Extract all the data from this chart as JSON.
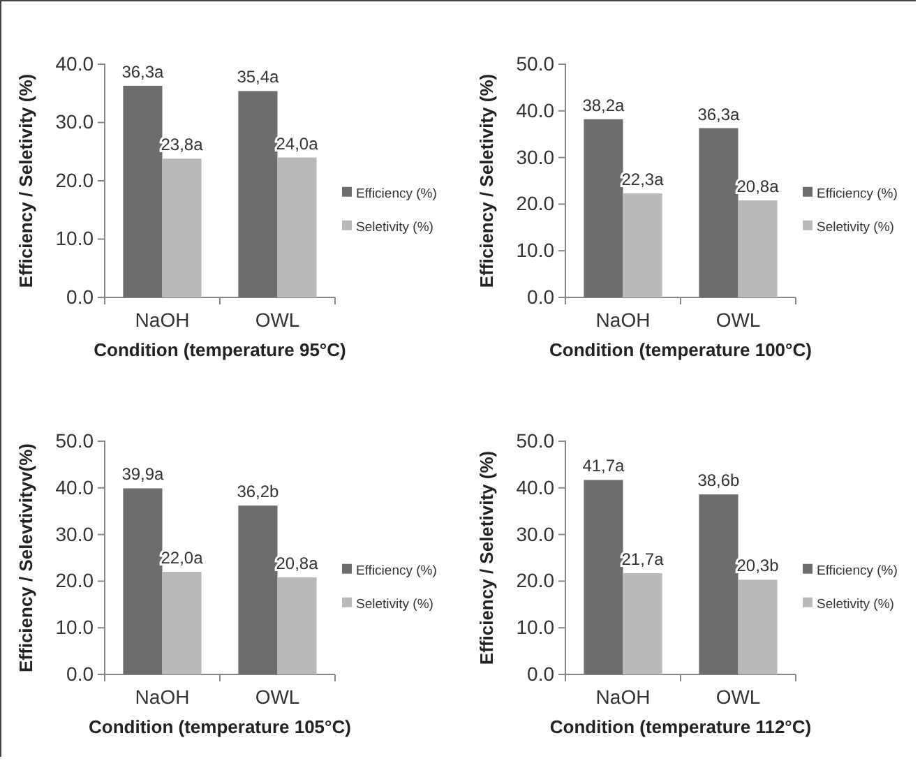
{
  "chart_data": [
    {
      "type": "bar",
      "xlabel": "Condition (temperature 95°C)",
      "ylabel": "Efficiency / Seletivity (%)",
      "categories": [
        "NaOH",
        "OWL"
      ],
      "ylim": [
        0,
        40
      ],
      "yticks": [
        {
          "value": 0,
          "label": "0.0"
        },
        {
          "value": 10,
          "label": "10.0"
        },
        {
          "value": 20,
          "label": "20.0"
        },
        {
          "value": 30,
          "label": "30.0"
        },
        {
          "value": 40,
          "label": "40.0"
        }
      ],
      "legend": "right",
      "series": [
        {
          "name": "Efficiency (%)",
          "color": "#6d6d6d",
          "values": [
            36.3,
            35.4
          ],
          "value_labels": [
            "36,3a",
            "35,4a"
          ]
        },
        {
          "name": "Seletivity (%)",
          "color": "#b9b9b9",
          "values": [
            23.8,
            24.0
          ],
          "value_labels": [
            "23,8a",
            "24,0a"
          ]
        }
      ]
    },
    {
      "type": "bar",
      "xlabel": "Condition (temperature 100°C)",
      "ylabel": "Efficiency / Seletivity (%)",
      "categories": [
        "NaOH",
        "OWL"
      ],
      "ylim": [
        0,
        50
      ],
      "yticks": [
        {
          "value": 0,
          "label": "0.0"
        },
        {
          "value": 10,
          "label": "10.0"
        },
        {
          "value": 20,
          "label": "20.0"
        },
        {
          "value": 30,
          "label": "30.0"
        },
        {
          "value": 40,
          "label": "40.0"
        },
        {
          "value": 50,
          "label": "50.0"
        }
      ],
      "legend": "right",
      "series": [
        {
          "name": "Efficiency (%)",
          "color": "#6d6d6d",
          "values": [
            38.2,
            36.3
          ],
          "value_labels": [
            "38,2a",
            "36,3a"
          ]
        },
        {
          "name": "Seletivity (%)",
          "color": "#b9b9b9",
          "values": [
            22.3,
            20.8
          ],
          "value_labels": [
            "22,3a",
            "20,8a"
          ]
        }
      ]
    },
    {
      "type": "bar",
      "xlabel": "Condition (temperature 105°C)",
      "ylabel": "Efficiency / Selevtivityv(%)",
      "categories": [
        "NaOH",
        "OWL"
      ],
      "ylim": [
        0,
        50
      ],
      "yticks": [
        {
          "value": 0,
          "label": "0.0"
        },
        {
          "value": 10,
          "label": "10.0"
        },
        {
          "value": 20,
          "label": "20.0"
        },
        {
          "value": 30,
          "label": "30.0"
        },
        {
          "value": 40,
          "label": "40.0"
        },
        {
          "value": 50,
          "label": "50.0"
        }
      ],
      "legend": "right",
      "series": [
        {
          "name": "Efficiency (%)",
          "color": "#6d6d6d",
          "values": [
            39.9,
            36.2
          ],
          "value_labels": [
            "39,9a",
            "36,2b"
          ]
        },
        {
          "name": "Seletivity (%)",
          "color": "#b9b9b9",
          "values": [
            22.0,
            20.8
          ],
          "value_labels": [
            "22,0a",
            "20,8a"
          ]
        }
      ]
    },
    {
      "type": "bar",
      "xlabel": "Condition (temperature 112°C)",
      "ylabel": "Efficiency / Seletivity (%)",
      "categories": [
        "NaOH",
        "OWL"
      ],
      "ylim": [
        0,
        50
      ],
      "yticks": [
        {
          "value": 0,
          "label": "0.0"
        },
        {
          "value": 10,
          "label": "10.0"
        },
        {
          "value": 20,
          "label": "20.0"
        },
        {
          "value": 30,
          "label": "30.0"
        },
        {
          "value": 40,
          "label": "40.0"
        },
        {
          "value": 50,
          "label": "50.0"
        }
      ],
      "legend": "right",
      "series": [
        {
          "name": "Efficiency (%)",
          "color": "#6d6d6d",
          "values": [
            41.7,
            38.6
          ],
          "value_labels": [
            "41,7a",
            "38,6b"
          ]
        },
        {
          "name": "Seletivity (%)",
          "color": "#b9b9b9",
          "values": [
            21.7,
            20.3
          ],
          "value_labels": [
            "21,7a",
            "20,3b"
          ]
        }
      ]
    }
  ]
}
